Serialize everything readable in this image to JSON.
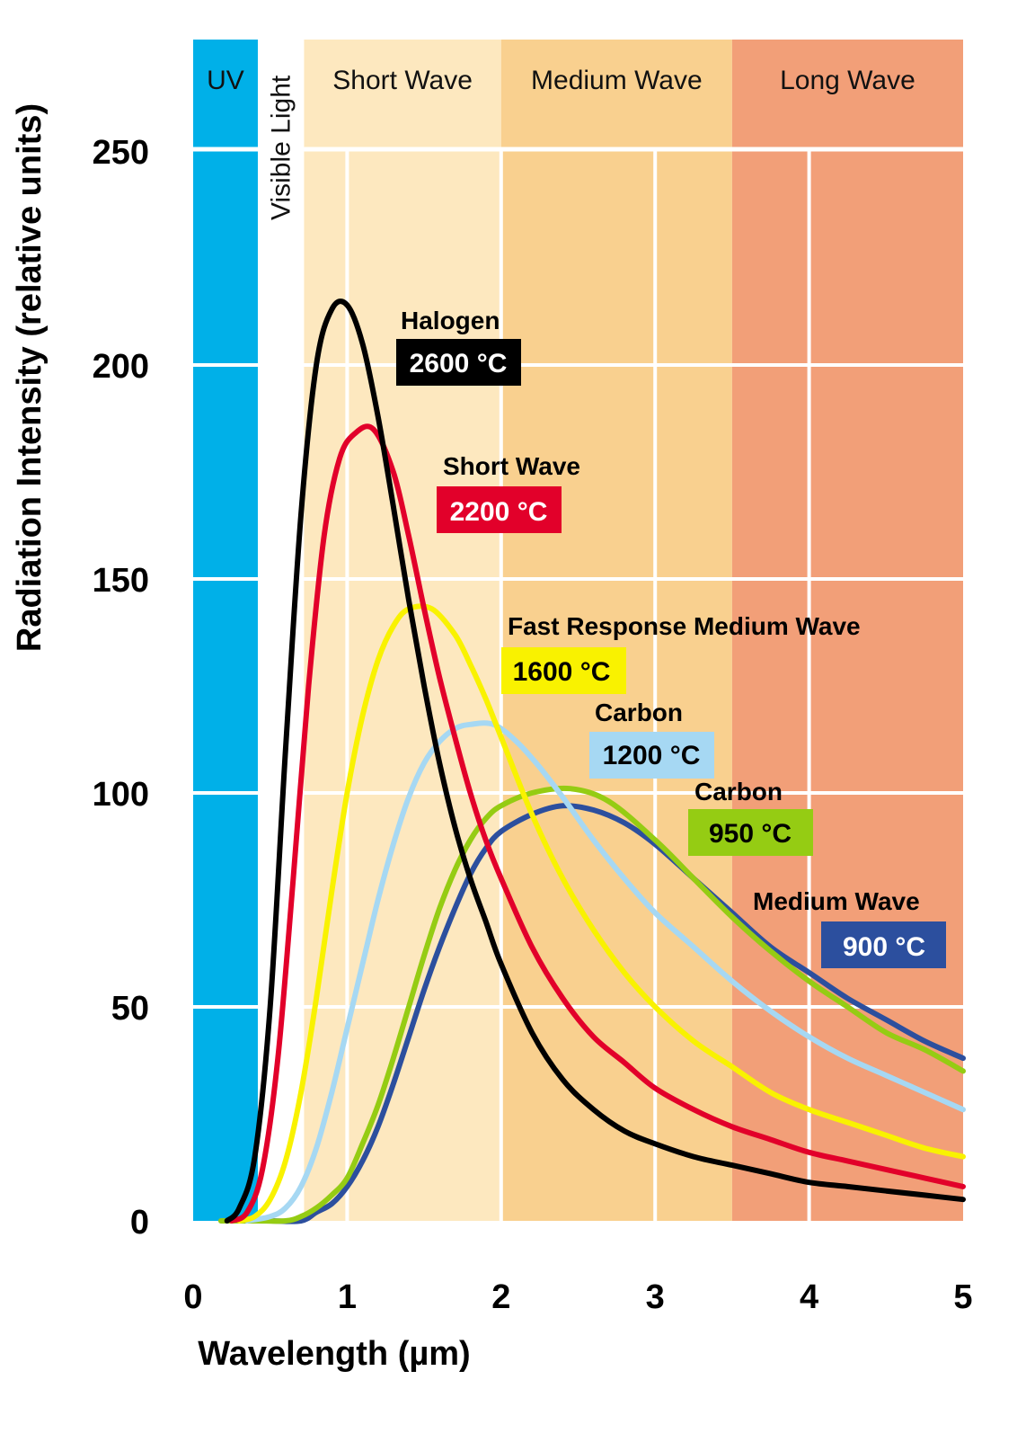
{
  "chart_data": {
    "type": "line",
    "title": "",
    "xlabel": "Wavelength (µm)",
    "ylabel": "Radiation Intensity (relative units)",
    "xlim": [
      0,
      5
    ],
    "ylim": [
      0,
      250
    ],
    "xticks": [
      0,
      1,
      2,
      3,
      4,
      5
    ],
    "yticks": [
      0,
      50,
      100,
      150,
      200,
      250
    ],
    "grid": true,
    "bands": [
      {
        "name": "UV",
        "from": 0,
        "to": 0.42,
        "color": "#00b0e8",
        "label_orientation": "horizontal"
      },
      {
        "name": "Visible Light",
        "from": 0.42,
        "to": 0.72,
        "color": "#ffffff",
        "label_orientation": "vertical"
      },
      {
        "name": "Short Wave",
        "from": 0.72,
        "to": 2.0,
        "color": "#fde8bf",
        "label_orientation": "horizontal"
      },
      {
        "name": "Medium Wave",
        "from": 2.0,
        "to": 3.5,
        "color": "#f9d08f",
        "label_orientation": "horizontal"
      },
      {
        "name": "Long Wave",
        "from": 3.5,
        "to": 5.0,
        "color": "#f29f78",
        "label_orientation": "horizontal"
      }
    ],
    "series": [
      {
        "name": "Halogen",
        "temperature": "2600 °C",
        "color": "#000000",
        "label_text_color": "#ffffff",
        "x": [
          0.22,
          0.3,
          0.4,
          0.5,
          0.6,
          0.7,
          0.8,
          0.9,
          1.0,
          1.1,
          1.2,
          1.3,
          1.4,
          1.5,
          1.6,
          1.7,
          1.8,
          1.9,
          2.0,
          2.2,
          2.4,
          2.6,
          2.8,
          3.0,
          3.25,
          3.5,
          3.75,
          4.0,
          4.25,
          4.5,
          4.75,
          5.0
        ],
        "y": [
          0,
          3,
          15,
          50,
          110,
          165,
          200,
          213,
          214,
          205,
          188,
          167,
          145,
          125,
          107,
          92,
          80,
          70,
          60,
          44,
          33,
          26,
          21,
          18,
          15,
          13,
          11,
          9,
          8,
          7,
          6,
          5
        ]
      },
      {
        "name": "Short Wave",
        "temperature": "2200 °C",
        "color": "#e2002a",
        "label_text_color": "#ffffff",
        "x": [
          0.25,
          0.35,
          0.45,
          0.55,
          0.65,
          0.75,
          0.85,
          0.95,
          1.05,
          1.17,
          1.3,
          1.4,
          1.5,
          1.6,
          1.7,
          1.8,
          1.9,
          2.0,
          2.2,
          2.4,
          2.6,
          2.8,
          3.0,
          3.25,
          3.5,
          3.75,
          4.0,
          4.25,
          4.5,
          4.75,
          5.0
        ],
        "y": [
          0,
          2,
          12,
          38,
          80,
          125,
          160,
          178,
          184,
          185,
          175,
          160,
          143,
          127,
          113,
          100,
          89,
          80,
          64,
          52,
          43,
          37,
          31,
          26,
          22,
          19,
          16,
          14,
          12,
          10,
          8
        ]
      },
      {
        "name": "Fast Response Medium Wave",
        "temperature": "1600 °C",
        "color": "#f9f200",
        "label_text_color": "#000000",
        "x": [
          0.3,
          0.4,
          0.5,
          0.6,
          0.7,
          0.8,
          0.9,
          1.0,
          1.1,
          1.2,
          1.3,
          1.4,
          1.55,
          1.7,
          1.8,
          1.9,
          2.0,
          2.2,
          2.4,
          2.6,
          2.8,
          3.0,
          3.25,
          3.5,
          3.75,
          4.0,
          4.25,
          4.5,
          4.75,
          5.0
        ],
        "y": [
          0,
          1,
          5,
          14,
          30,
          52,
          77,
          100,
          118,
          131,
          139,
          143,
          143,
          137,
          130,
          122,
          113,
          95,
          80,
          68,
          58,
          50,
          42,
          36,
          30,
          26,
          23,
          20,
          17,
          15
        ]
      },
      {
        "name": "Carbon",
        "temperature": "1200 °C",
        "color": "#a6d8f3",
        "label_text_color": "#000000",
        "x": [
          0.35,
          0.5,
          0.6,
          0.7,
          0.8,
          0.9,
          1.0,
          1.1,
          1.2,
          1.3,
          1.4,
          1.5,
          1.6,
          1.7,
          1.8,
          1.95,
          2.1,
          2.25,
          2.4,
          2.6,
          2.8,
          3.0,
          3.25,
          3.5,
          3.75,
          4.0,
          4.25,
          4.5,
          4.75,
          5.0
        ],
        "y": [
          0,
          1,
          3,
          8,
          17,
          30,
          45,
          60,
          75,
          88,
          99,
          107,
          112,
          115,
          116,
          116,
          112,
          106,
          99,
          89,
          80,
          72,
          64,
          56,
          49,
          43,
          38,
          34,
          30,
          26
        ]
      },
      {
        "name": "Carbon",
        "temperature": "950 °C",
        "color": "#95cc13",
        "label_text_color": "#000000",
        "x": [
          0.18,
          0.4,
          0.6,
          0.7,
          0.8,
          0.9,
          1.0,
          1.1,
          1.2,
          1.3,
          1.4,
          1.5,
          1.6,
          1.7,
          1.8,
          1.9,
          2.0,
          2.2,
          2.45,
          2.7,
          3.0,
          3.25,
          3.5,
          3.75,
          4.0,
          4.25,
          4.5,
          4.75,
          5.0
        ],
        "y": [
          0,
          0,
          0,
          1,
          3,
          6,
          10,
          18,
          27,
          38,
          50,
          62,
          73,
          82,
          89,
          94,
          97,
          100,
          101,
          98,
          89,
          80,
          71,
          63,
          56,
          50,
          44,
          40,
          35
        ]
      },
      {
        "name": "Medium Wave",
        "temperature": "900 °C",
        "color": "#2c4f9e",
        "label_text_color": "#ffffff",
        "x": [
          0.28,
          0.5,
          0.7,
          0.8,
          0.9,
          1.0,
          1.1,
          1.2,
          1.3,
          1.4,
          1.5,
          1.6,
          1.7,
          1.8,
          1.9,
          2.0,
          2.2,
          2.4,
          2.6,
          2.8,
          3.0,
          3.25,
          3.5,
          3.75,
          4.0,
          4.25,
          4.5,
          4.75,
          5.0
        ],
        "y": [
          0,
          0,
          0,
          2,
          4,
          8,
          14,
          22,
          32,
          43,
          54,
          64,
          73,
          81,
          87,
          91,
          95,
          97,
          96,
          93,
          88,
          80,
          72,
          64,
          58,
          52,
          47,
          42,
          38
        ]
      }
    ],
    "annotations": [
      {
        "series_index": 0,
        "name": "Halogen",
        "temperature": "2600 °C",
        "box_color": "#000000",
        "text_color": "#ffffff"
      },
      {
        "series_index": 1,
        "name": "Short Wave",
        "temperature": "2200 °C",
        "box_color": "#e2002a",
        "text_color": "#ffffff"
      },
      {
        "series_index": 2,
        "name": "Fast Response Medium Wave",
        "temperature": "1600 °C",
        "box_color": "#f9f200",
        "text_color": "#000000"
      },
      {
        "series_index": 3,
        "name": "Carbon",
        "temperature": "1200 °C",
        "box_color": "#a6d8f3",
        "text_color": "#000000"
      },
      {
        "series_index": 4,
        "name": "Carbon",
        "temperature": "950 °C",
        "box_color": "#95cc13",
        "text_color": "#000000"
      },
      {
        "series_index": 5,
        "name": "Medium Wave",
        "temperature": "900 °C",
        "box_color": "#2c4f9e",
        "text_color": "#ffffff"
      }
    ]
  }
}
